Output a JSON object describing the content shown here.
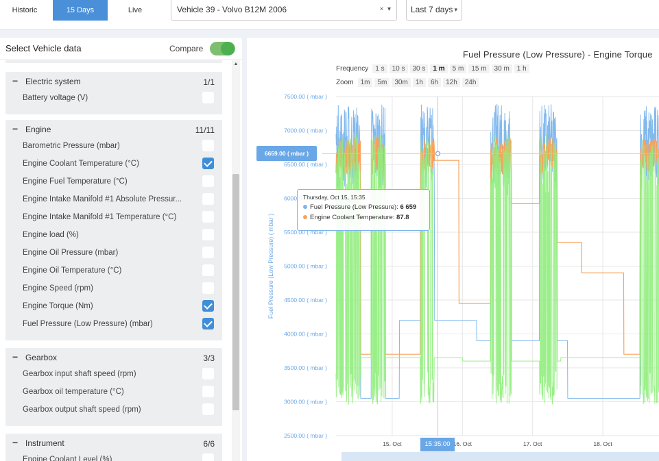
{
  "modes": [
    {
      "label": "Historic",
      "active": false
    },
    {
      "label": "15 Days",
      "active": true
    },
    {
      "label": "Live",
      "active": false
    }
  ],
  "vehicle_select": {
    "value": "Vehicle 39 - Volvo B12M 2006",
    "clear": "×",
    "caret": "▾"
  },
  "range_select": {
    "value": "Last 7 days",
    "caret": "▾"
  },
  "sidebar": {
    "title": "Select Vehicle data",
    "compare_label": "Compare",
    "compare_on": true,
    "groups": [
      {
        "name": "Electric system",
        "count": "1/1",
        "items": [
          {
            "label": "Battery voltage (V)",
            "checked": false
          }
        ]
      },
      {
        "name": "Engine",
        "count": "11/11",
        "items": [
          {
            "label": "Barometric Pressure (mbar)",
            "checked": false
          },
          {
            "label": "Engine Coolant Temperature (°C)",
            "checked": true
          },
          {
            "label": "Engine Fuel Temperature (°C)",
            "checked": false
          },
          {
            "label": "Engine Intake Manifold #1 Absolute Pressur...",
            "checked": false
          },
          {
            "label": "Engine Intake Manifold #1 Temperature (°C)",
            "checked": false
          },
          {
            "label": "Engine load (%)",
            "checked": false
          },
          {
            "label": "Engine Oil Pressure (mbar)",
            "checked": false
          },
          {
            "label": "Engine Oil Temperature (°C)",
            "checked": false
          },
          {
            "label": "Engine Speed (rpm)",
            "checked": false
          },
          {
            "label": "Engine Torque (Nm)",
            "checked": true
          },
          {
            "label": "Fuel Pressure (Low Pressure) (mbar)",
            "checked": true
          }
        ]
      },
      {
        "name": "Gearbox",
        "count": "3/3",
        "items": [
          {
            "label": "Gearbox input shaft speed (rpm)",
            "checked": false
          },
          {
            "label": "Gearbox oil temperature (°C)",
            "checked": false
          },
          {
            "label": "Gearbox output shaft speed (rpm)",
            "checked": false
          }
        ]
      },
      {
        "name": "Instrument",
        "count": "6/6",
        "items": [
          {
            "label": "Engine Coolant Level (%)",
            "checked": false
          }
        ]
      }
    ]
  },
  "chart": {
    "title": "Fuel Pressure (Low Pressure) - Engine Torque",
    "frequency": {
      "label": "Frequency",
      "options": [
        "1 s",
        "10 s",
        "30 s",
        "1 m",
        "5 m",
        "15 m",
        "30 m",
        "1 h"
      ],
      "selected": "1 m"
    },
    "zoom": {
      "label": "Zoom",
      "options": [
        "1m",
        "5m",
        "30m",
        "1h",
        "6h",
        "12h",
        "24h"
      ]
    },
    "tooltip": {
      "date": "Thursday, Oct 15, 15:35",
      "rows": [
        {
          "name": "Fuel Pressure (Low Pressure):",
          "value": "6 659",
          "color": "#7cb5ec"
        },
        {
          "name": "Engine Coolant Temperature:",
          "value": "87.8",
          "color": "#f7a35c"
        }
      ]
    },
    "crosshair": {
      "y_label": "6659.00 ( mbar )",
      "x_label": "15:35:00"
    }
  },
  "chart_data": {
    "type": "line",
    "title": "Fuel Pressure (Low Pressure) - Engine Torque",
    "ylabel": "Fuel Pressure (Low Pressure) ( mbar )",
    "xlabel": "",
    "y_ticks": [
      "7500.00 ( mbar )",
      "7000.00 ( mbar )",
      "6500.00 ( mbar )",
      "6000.00 ( mbar )",
      "5500.00 ( mbar )",
      "5000.00 ( mbar )",
      "4500.00 ( mbar )",
      "4000.00 ( mbar )",
      "3500.00 ( mbar )",
      "3000.00 ( mbar )",
      "2500.00 ( mbar )"
    ],
    "ylim": [
      2500,
      7500
    ],
    "x_ticks": [
      {
        "label": "15. Oct",
        "day": 15.0
      },
      {
        "label": "16. Oct",
        "day": 16.0
      },
      {
        "label": "17. Oct",
        "day": 17.0
      },
      {
        "label": "18. Oct",
        "day": 18.0
      }
    ],
    "xlim": [
      14.2,
      18.8
    ],
    "grid": true,
    "series": [
      {
        "name": "Fuel Pressure (Low Pressure)",
        "color": "#7cb5ec"
      },
      {
        "name": "Engine Coolant Temperature",
        "color": "#f7a35c"
      },
      {
        "name": "Engine Torque",
        "color": "#90ed7d"
      }
    ],
    "activity_periods": [
      [
        14.2,
        14.55
      ],
      [
        14.7,
        14.9
      ],
      [
        15.4,
        15.6
      ],
      [
        16.4,
        16.7
      ],
      [
        17.1,
        17.35
      ],
      [
        18.53,
        18.8
      ]
    ],
    "crosshair": {
      "day": 15.65,
      "value": 6659
    }
  },
  "colors": {
    "accent": "#4a90d9",
    "toggle": "#4caf50",
    "checkbox": "#3f8ed8"
  },
  "icons": {
    "collapse": "−",
    "scroll_up": "▲"
  }
}
